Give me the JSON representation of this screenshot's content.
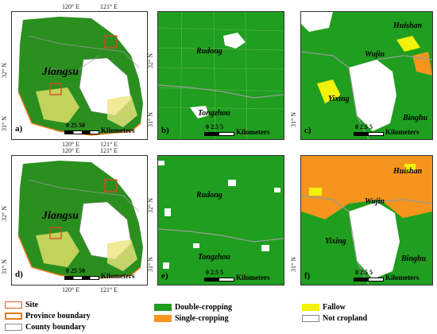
{
  "legend": {
    "site": "Site",
    "province_boundary": "Province boundary",
    "county_boundary": "County boundary",
    "double_cropping": "Double-cropping",
    "single_cropping": "Single-cropping",
    "fallow": "Fallow",
    "not_cropland": "Not cropland"
  },
  "colors": {
    "double_cropping": "#1f9e1f",
    "single_cropping": "#f5951e",
    "fallow": "#f2f20a",
    "not_cropland": "#ffffff",
    "site": "#e05a2a",
    "province_boundary": "#e37b1a",
    "county_boundary": "#8c8c8c"
  },
  "axes": {
    "lon1": "120° E",
    "lon2": "121° E",
    "lat32": "32° N",
    "lat31": "31° N"
  },
  "scale_overview": {
    "nums": "0  25  50",
    "unit": "Kilometers"
  },
  "scale_site": {
    "nums": "0  2.5  5",
    "unit": "Kilometers"
  },
  "panels": {
    "a": {
      "label": "a)",
      "region": "Jiangsu"
    },
    "b": {
      "label": "b)",
      "place1": "Rudong",
      "place2": "Tongzhou"
    },
    "c": {
      "label": "c)",
      "place1": "Huishan",
      "place2": "Wujin",
      "place3": "Yixing",
      "place4": "Binghu"
    },
    "d": {
      "label": "d)",
      "region": "Jiangsu"
    },
    "e": {
      "label": "e)",
      "place1": "Rudong",
      "place2": "Tongzhou"
    },
    "f": {
      "label": "f)",
      "place1": "Huishan",
      "place2": "Wujin",
      "place3": "Yixing",
      "place4": "Binghu"
    }
  }
}
